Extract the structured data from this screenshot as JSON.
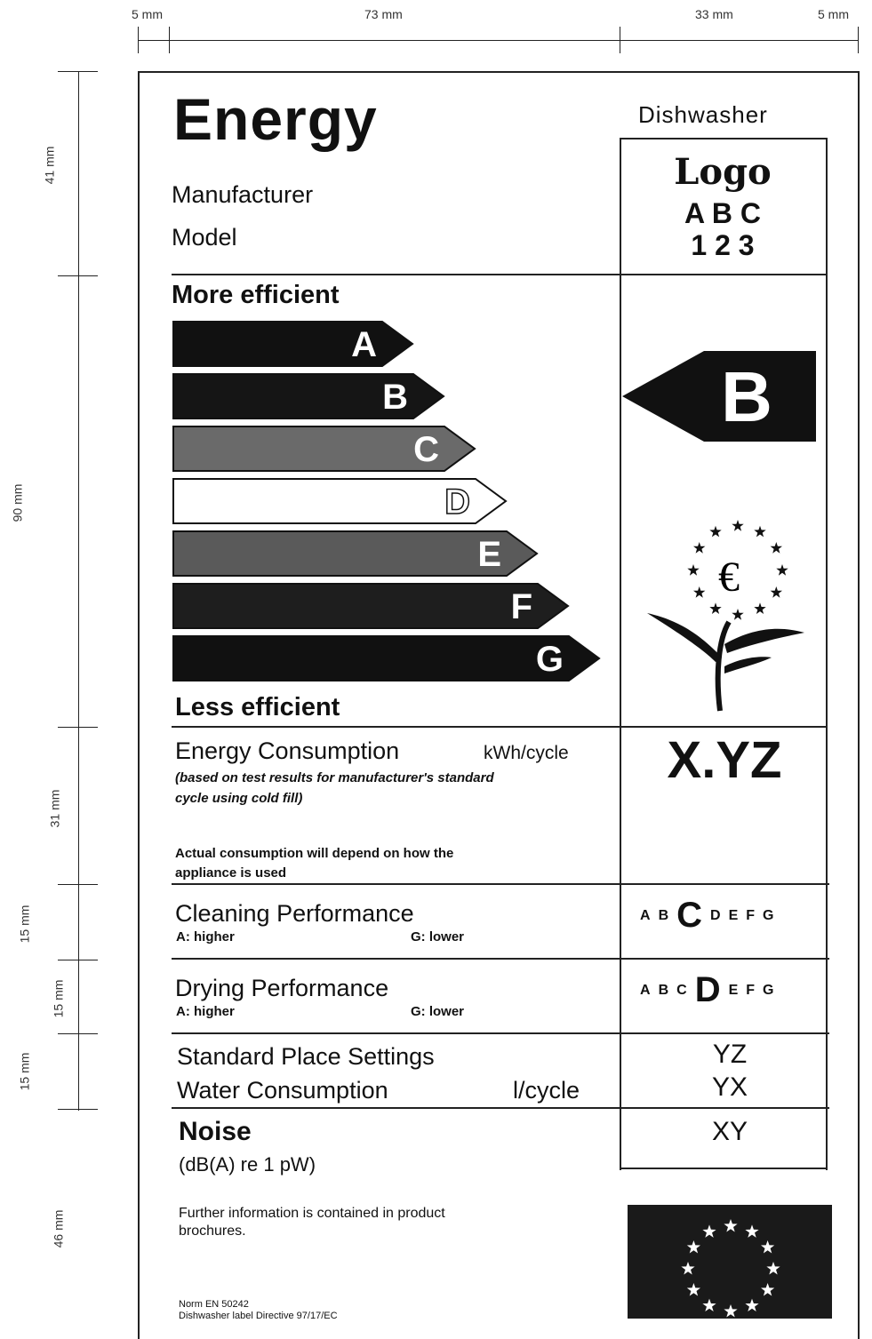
{
  "dimensions": {
    "top": [
      "5 mm",
      "73 mm",
      "33 mm",
      "5 mm"
    ],
    "left": [
      "41 mm",
      "90 mm",
      "31 mm",
      "15 mm",
      "15 mm",
      "15 mm",
      "46 mm"
    ]
  },
  "header": {
    "title": "Energy",
    "appliance": "Dishwasher",
    "manufacturer": "Manufacturer",
    "model": "Model",
    "logo": [
      "Logo",
      "A B C",
      "1 2 3"
    ]
  },
  "scale": {
    "top": "More efficient",
    "bottom": "Less efficient",
    "classes": [
      "A",
      "B",
      "C",
      "D",
      "E",
      "F",
      "G"
    ],
    "rating": "B"
  },
  "energy": {
    "label": "Energy Consumption",
    "unit": "kWh/cycle",
    "note": "(based on test results for manufacturer's standard cycle using cold fill)",
    "remark": "Actual consumption will depend on how the appliance is used",
    "value": "X.YZ"
  },
  "cleaning": {
    "label": "Cleaning Performance",
    "best": "A: higher",
    "worst": "G: lower",
    "classes": [
      "A",
      "B",
      "C",
      "D",
      "E",
      "F",
      "G"
    ],
    "rating": "C"
  },
  "drying": {
    "label": "Drying Performance",
    "best": "A: higher",
    "worst": "G: lower",
    "classes": [
      "A",
      "B",
      "C",
      "D",
      "E",
      "F",
      "G"
    ],
    "rating": "D"
  },
  "place_settings": {
    "label": "Standard Place Settings",
    "value": "YZ"
  },
  "water": {
    "label": "Water Consumption",
    "unit": "l/cycle",
    "value": "YX"
  },
  "noise": {
    "label": "Noise",
    "unit": "(dB(A) re 1 pW)",
    "value": "XY"
  },
  "footer": {
    "info": "Further information is contained in product brochures.",
    "norm": "Norm EN 50242",
    "directive": "Dishwasher label Directive 97/17/EC"
  }
}
